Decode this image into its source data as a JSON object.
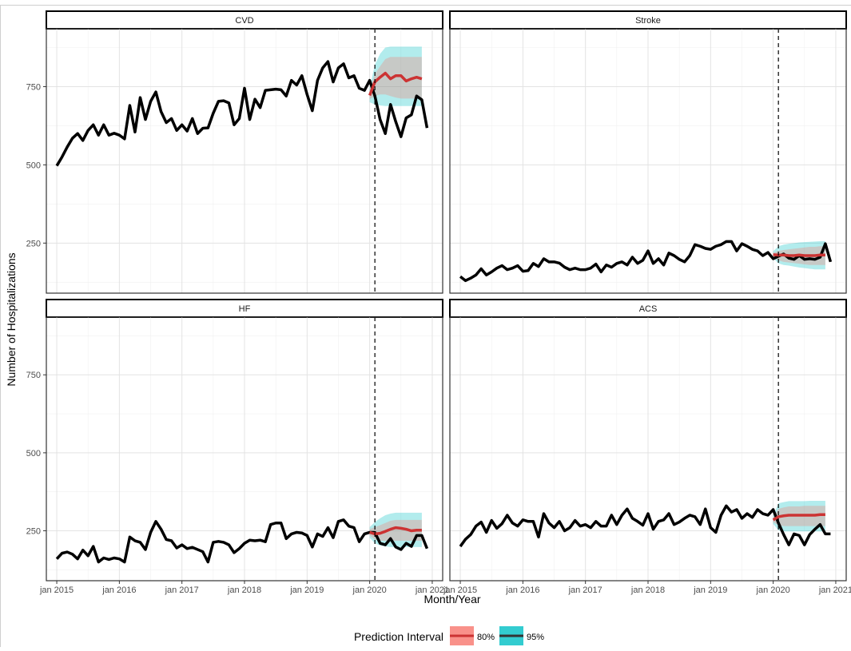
{
  "figure": {
    "ylabel": "Number of Hospitalizations",
    "xlabel": "Month/Year",
    "x_ticks": [
      "jan 2015",
      "jan 2016",
      "jan 2017",
      "jan 2018",
      "jan 2019",
      "jan 2020",
      "jan 2021"
    ],
    "y_ticks": [
      "250",
      "500",
      "750"
    ],
    "legend": {
      "title": "Prediction Interval",
      "items": [
        {
          "label": "80%",
          "color": "#F8766D"
        },
        {
          "label": "95%",
          "color": "#00BFC4"
        }
      ]
    },
    "colors": {
      "observed": "#000000",
      "forecast": "#cc3333",
      "pi80": "#F8766D",
      "pi95": "#00BFC4"
    }
  },
  "chart_data": [
    {
      "type": "line",
      "title": "CVD",
      "x_start": "2015-01",
      "x_step": "1 month",
      "vline": "2020-02",
      "ylim": [
        90,
        935
      ],
      "observed": [
        497,
        525,
        557,
        585,
        600,
        578,
        610,
        628,
        595,
        628,
        595,
        601,
        595,
        583,
        690,
        605,
        715,
        645,
        703,
        733,
        670,
        635,
        648,
        610,
        628,
        608,
        648,
        600,
        617,
        618,
        665,
        703,
        705,
        698,
        628,
        648,
        745,
        645,
        710,
        683,
        738,
        740,
        742,
        740,
        720,
        770,
        755,
        785,
        725,
        673,
        770,
        810,
        830,
        765,
        810,
        823,
        778,
        785,
        745,
        738,
        770,
        720,
        645,
        600,
        693,
        638,
        590,
        650,
        660,
        720,
        708,
        618
      ],
      "forecast": {
        "x_start": "2020-01",
        "mean": [
          722,
          765,
          780,
          793,
          775,
          785,
          785,
          768,
          775,
          780,
          775
        ],
        "lo80": [
          710,
          720,
          725,
          725,
          720,
          715,
          712,
          712,
          712,
          712,
          712
        ],
        "hi80": [
          740,
          790,
          815,
          838,
          845,
          845,
          845,
          845,
          845,
          845,
          845
        ],
        "lo95": [
          700,
          693,
          690,
          688,
          688,
          688,
          688,
          688,
          688,
          688,
          688
        ],
        "hi95": [
          745,
          820,
          855,
          875,
          878,
          878,
          878,
          878,
          878,
          878,
          878
        ]
      }
    },
    {
      "type": "line",
      "title": "Stroke",
      "x_start": "2015-01",
      "x_step": "1 month",
      "vline": "2020-02",
      "ylim": [
        90,
        935
      ],
      "observed": [
        143,
        130,
        138,
        148,
        168,
        148,
        158,
        170,
        178,
        165,
        170,
        178,
        160,
        162,
        185,
        175,
        200,
        190,
        190,
        186,
        173,
        165,
        170,
        165,
        165,
        170,
        183,
        158,
        180,
        173,
        185,
        190,
        180,
        205,
        185,
        195,
        225,
        185,
        200,
        180,
        218,
        210,
        198,
        190,
        210,
        245,
        240,
        233,
        230,
        240,
        245,
        255,
        255,
        225,
        248,
        240,
        230,
        225,
        210,
        220,
        200,
        208,
        215,
        202,
        198,
        210,
        198,
        200,
        198,
        205,
        248,
        190
      ],
      "forecast": {
        "x_start": "2020-01",
        "mean": [
          213,
          212,
          212,
          210,
          210,
          212,
          210,
          210,
          210,
          212,
          212
        ],
        "lo80": [
          207,
          195,
          190,
          188,
          186,
          184,
          182,
          180,
          180,
          180,
          180
        ],
        "hi80": [
          219,
          225,
          228,
          230,
          232,
          234,
          236,
          238,
          238,
          240,
          240
        ],
        "lo95": [
          202,
          185,
          180,
          178,
          175,
          172,
          170,
          168,
          166,
          166,
          166
        ],
        "hi95": [
          224,
          240,
          245,
          248,
          250,
          252,
          253,
          254,
          255,
          256,
          256
        ]
      }
    },
    {
      "type": "line",
      "title": "HF",
      "x_start": "2015-01",
      "x_step": "1 month",
      "vline": "2020-02",
      "ylim": [
        90,
        935
      ],
      "observed": [
        160,
        178,
        182,
        175,
        160,
        188,
        170,
        200,
        150,
        163,
        158,
        163,
        160,
        150,
        230,
        218,
        213,
        190,
        245,
        280,
        255,
        222,
        218,
        195,
        205,
        193,
        197,
        190,
        183,
        150,
        213,
        216,
        213,
        205,
        180,
        193,
        210,
        220,
        218,
        220,
        215,
        270,
        275,
        275,
        225,
        240,
        245,
        243,
        235,
        198,
        240,
        232,
        260,
        228,
        280,
        285,
        265,
        260,
        215,
        240,
        245,
        245,
        210,
        205,
        225,
        198,
        190,
        210,
        200,
        235,
        235,
        193
      ],
      "forecast": {
        "x_start": "2020-01",
        "mean": [
          245,
          240,
          242,
          248,
          255,
          260,
          258,
          255,
          250,
          252,
          252
        ],
        "lo80": [
          235,
          222,
          218,
          218,
          218,
          218,
          218,
          218,
          218,
          218,
          218
        ],
        "hi80": [
          255,
          262,
          268,
          275,
          282,
          285,
          285,
          285,
          285,
          285,
          285
        ],
        "lo95": [
          228,
          210,
          203,
          200,
          198,
          198,
          198,
          198,
          198,
          198,
          198
        ],
        "hi95": [
          262,
          278,
          290,
          300,
          305,
          308,
          308,
          308,
          308,
          308,
          308
        ]
      }
    },
    {
      "type": "line",
      "title": "ACS",
      "x_start": "2015-01",
      "x_step": "1 month",
      "vline": "2020-02",
      "ylim": [
        90,
        935
      ],
      "observed": [
        200,
        223,
        238,
        265,
        278,
        245,
        283,
        258,
        273,
        300,
        275,
        265,
        285,
        280,
        280,
        230,
        305,
        275,
        260,
        280,
        250,
        260,
        283,
        265,
        270,
        260,
        280,
        265,
        265,
        300,
        270,
        300,
        320,
        290,
        280,
        268,
        305,
        255,
        280,
        285,
        305,
        270,
        278,
        290,
        300,
        295,
        270,
        320,
        260,
        245,
        300,
        330,
        310,
        318,
        290,
        305,
        293,
        318,
        305,
        300,
        318,
        275,
        238,
        205,
        240,
        235,
        205,
        238,
        255,
        270,
        240,
        240
      ],
      "forecast": {
        "x_start": "2020-01",
        "mean": [
          285,
          295,
          298,
          300,
          300,
          300,
          300,
          300,
          300,
          302,
          302
        ],
        "lo80": [
          278,
          268,
          265,
          265,
          265,
          265,
          265,
          265,
          265,
          265,
          265
        ],
        "hi80": [
          292,
          320,
          325,
          328,
          328,
          328,
          330,
          330,
          330,
          330,
          330
        ],
        "lo95": [
          272,
          252,
          248,
          248,
          248,
          248,
          248,
          248,
          248,
          248,
          248
        ],
        "hi95": [
          298,
          338,
          342,
          345,
          345,
          345,
          345,
          346,
          346,
          346,
          346
        ]
      }
    }
  ]
}
